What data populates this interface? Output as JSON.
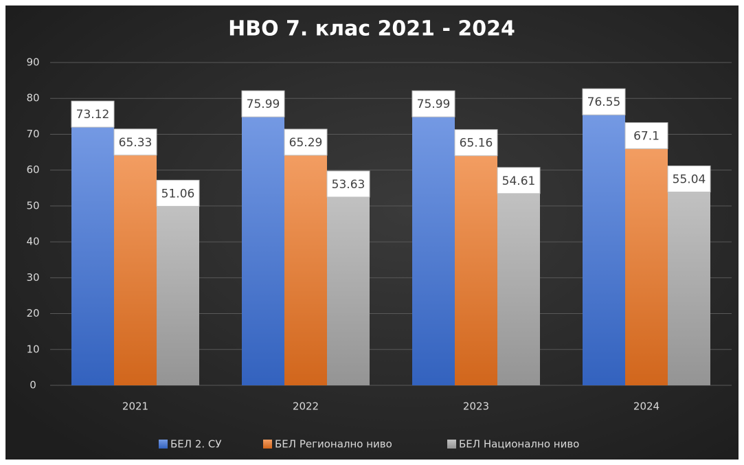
{
  "chart_data": {
    "type": "bar",
    "title": "НВО 7. клас 2021 - 2024",
    "categories": [
      "2021",
      "2022",
      "2023",
      "2024"
    ],
    "series": [
      {
        "name": "БЕЛ 2. СУ",
        "color": "#3a6fd8",
        "values": [
          73.12,
          75.99,
          75.99,
          76.55
        ]
      },
      {
        "name": "БЕЛ Регионално ниво",
        "color": "#ee7420",
        "values": [
          65.33,
          65.29,
          65.16,
          67.1
        ]
      },
      {
        "name": "БЕЛ Национално ниво",
        "color": "#a8a8a8",
        "values": [
          51.06,
          53.63,
          54.61,
          55.04
        ]
      }
    ],
    "ylim": [
      0,
      90
    ],
    "yticks": [
      0,
      10,
      20,
      30,
      40,
      50,
      60,
      70,
      80,
      90
    ],
    "grid": true,
    "legend": "bottom"
  }
}
